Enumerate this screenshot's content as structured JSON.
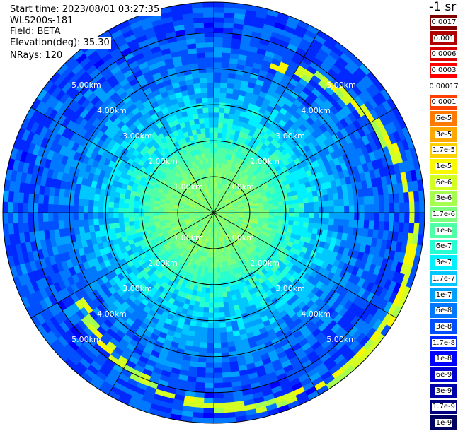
{
  "header": {
    "start_time": "Start time: 2023/08/01 03:27:35",
    "instrument": "WLS200s-181",
    "field": "Field: BETA",
    "elevation": "Elevation(deg): 35.30",
    "nrays": "NRays: 120"
  },
  "colorbar": {
    "unit": "-1 sr",
    "levels": [
      {
        "label": "0.0017",
        "color": "#800000"
      },
      {
        "label": "0.001",
        "color": "#b00000"
      },
      {
        "label": "0.0006",
        "color": "#d80000"
      },
      {
        "label": "0.0003",
        "color": "#ff0000"
      },
      {
        "label": "0.00017",
        "color": "#ffffff"
      },
      {
        "label": "0.0001",
        "color": "#ff4000"
      },
      {
        "label": "6e-5",
        "color": "#ff7a00"
      },
      {
        "label": "3e-5",
        "color": "#ffa800"
      },
      {
        "label": "1.7e-5",
        "color": "#ffd000"
      },
      {
        "label": "1e-5",
        "color": "#f8f800"
      },
      {
        "label": "6e-6",
        "color": "#d4ff22"
      },
      {
        "label": "3e-6",
        "color": "#a6ff50"
      },
      {
        "label": "1.7e-6",
        "color": "#7cff7c"
      },
      {
        "label": "1e-6",
        "color": "#50ffa6"
      },
      {
        "label": "6e-7",
        "color": "#26ffd0"
      },
      {
        "label": "3e-7",
        "color": "#00f0ff"
      },
      {
        "label": "1.7e-7",
        "color": "#00c8ff"
      },
      {
        "label": "1e-7",
        "color": "#00a0ff"
      },
      {
        "label": "6e-8",
        "color": "#0078ff"
      },
      {
        "label": "3e-8",
        "color": "#0050ff"
      },
      {
        "label": "1.7e-8",
        "color": "#0028ff"
      },
      {
        "label": "1e-8",
        "color": "#0000ff"
      },
      {
        "label": "6e-9",
        "color": "#0000d0"
      },
      {
        "label": "3e-9",
        "color": "#0000a8"
      },
      {
        "label": "1.7e-9",
        "color": "#000080"
      },
      {
        "label": "1e-9",
        "color": "#000060"
      }
    ]
  },
  "chart_data": {
    "type": "heatmap",
    "projection": "polar (PPI scan)",
    "field": "BETA",
    "range_rings_km": [
      1,
      2,
      3,
      4,
      5
    ],
    "range_labels": [
      "1.00km",
      "2.00km",
      "3.00km",
      "4.00km",
      "5.00km"
    ],
    "max_range_km": 5.85,
    "spoke_azimuths_deg": [
      0,
      30,
      60,
      90,
      120,
      150,
      180,
      210,
      240,
      270,
      300,
      330
    ],
    "nrays": 120,
    "backscatter_profile": [
      {
        "range_km": 0.5,
        "value": "1.7e-6"
      },
      {
        "range_km": 1.2,
        "value": "1.7e-6"
      },
      {
        "range_km": 2.0,
        "value": "6e-7"
      },
      {
        "range_km": 3.0,
        "value": "1.7e-7"
      },
      {
        "range_km": 4.0,
        "value": "6e-8"
      },
      {
        "range_km": 5.0,
        "value": "3e-8"
      }
    ],
    "enhanced_arc": {
      "azimuth_start_deg": 20,
      "azimuth_end_deg": 240,
      "range_km": [
        4.3,
        5.8
      ],
      "value": "1e-5"
    }
  }
}
